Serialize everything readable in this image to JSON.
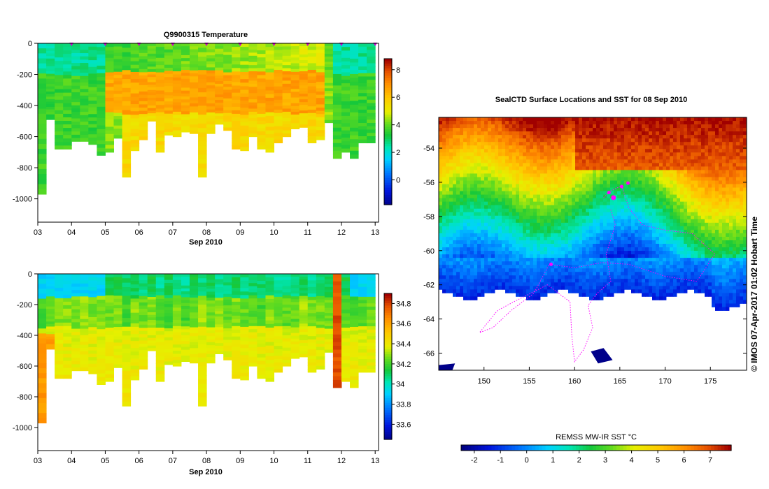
{
  "panels": {
    "temperature": {
      "title": "Q9900315  Temperature",
      "xlabel": "Sep 2010",
      "xticks": [
        "03",
        "04",
        "05",
        "06",
        "07",
        "08",
        "09",
        "10",
        "11",
        "12",
        "13"
      ],
      "yticks": [
        "0",
        "-200",
        "-400",
        "-600",
        "-800",
        "-1000"
      ],
      "ylim": [
        -1150,
        0
      ],
      "xlim": [
        3,
        13.1
      ],
      "colorbar_ticks": [
        "8",
        "6",
        "4",
        "2",
        "0"
      ],
      "colorbar_values": [
        8,
        6,
        4,
        2,
        0
      ],
      "colorbar_range": [
        -1.8,
        8.8
      ]
    },
    "salinity": {
      "xlabel": "Sep 2010",
      "xticks": [
        "03",
        "04",
        "05",
        "06",
        "07",
        "08",
        "09",
        "10",
        "11",
        "12",
        "13"
      ],
      "yticks": [
        "0",
        "-200",
        "-400",
        "-600",
        "-800",
        "-1000"
      ],
      "ylim": [
        -1150,
        0
      ],
      "xlim": [
        3,
        13.1
      ],
      "colorbar_ticks": [
        "34.8",
        "34.6",
        "34.4",
        "34.2",
        "34",
        "33.8",
        "33.6"
      ],
      "colorbar_values": [
        34.8,
        34.6,
        34.4,
        34.2,
        34.0,
        33.8,
        33.6
      ],
      "colorbar_range": [
        33.45,
        34.9
      ]
    },
    "map": {
      "title": "SealCTD Surface Locations and SST for 08 Sep 2010",
      "xticks": [
        "150",
        "155",
        "160",
        "165",
        "170",
        "175"
      ],
      "xtick_values": [
        150,
        155,
        160,
        165,
        170,
        175
      ],
      "yticks": [
        "-54",
        "-56",
        "-58",
        "-60",
        "-62",
        "-64",
        "-66"
      ],
      "ytick_values": [
        -54,
        -56,
        -58,
        -60,
        -62,
        -64,
        -66
      ],
      "lon_range": [
        145,
        179
      ],
      "lat_range": [
        -67,
        -52.2
      ],
      "colorbar_label": "REMSS MW-IR SST °C",
      "colorbar_ticks": [
        "-2",
        "-1",
        "0",
        "1",
        "2",
        "3",
        "4",
        "5",
        "6",
        "7"
      ],
      "colorbar_values": [
        -2,
        -1,
        0,
        1,
        2,
        3,
        4,
        5,
        6,
        7
      ],
      "colorbar_range": [
        -2.5,
        7.8
      ]
    },
    "credit": "©  IMOS 07-Apr-2017 01:02 Hobart Time"
  },
  "chart_data": [
    {
      "type": "heatmap",
      "title": "Q9900315  Temperature",
      "xlabel": "Sep 2010",
      "ylabel": "",
      "profile_days": [
        3.1,
        3.35,
        3.6,
        3.85,
        4.1,
        4.35,
        4.6,
        4.85,
        5.1,
        5.35,
        5.6,
        5.85,
        6.1,
        6.35,
        6.6,
        6.85,
        7.1,
        7.35,
        7.6,
        7.85,
        8.1,
        8.35,
        8.6,
        8.85,
        9.1,
        9.35,
        9.6,
        9.85,
        10.1,
        10.35,
        10.6,
        10.85,
        11.1,
        11.35,
        11.6,
        11.85,
        12.1,
        12.35,
        12.6,
        12.85
      ],
      "max_depth_m": [
        970,
        490,
        680,
        680,
        630,
        630,
        650,
        720,
        700,
        610,
        860,
        690,
        620,
        500,
        700,
        590,
        600,
        570,
        580,
        860,
        580,
        520,
        560,
        680,
        690,
        600,
        680,
        700,
        640,
        600,
        550,
        540,
        640,
        620,
        510,
        740,
        700,
        740,
        640,
        640
      ],
      "ylim": [
        -1150,
        0
      ],
      "colorbar_range": [
        -1.8,
        8.8
      ],
      "markers_days": [
        4,
        5,
        6,
        7,
        8,
        9,
        10,
        11,
        12,
        13
      ]
    },
    {
      "type": "heatmap",
      "title": "",
      "xlabel": "Sep 2010",
      "ylabel": "",
      "profile_days": [
        3.1,
        3.35,
        3.6,
        3.85,
        4.1,
        4.35,
        4.6,
        4.85,
        5.1,
        5.35,
        5.6,
        5.85,
        6.1,
        6.35,
        6.6,
        6.85,
        7.1,
        7.35,
        7.6,
        7.85,
        8.1,
        8.35,
        8.6,
        8.85,
        9.1,
        9.35,
        9.6,
        9.85,
        10.1,
        10.35,
        10.6,
        10.85,
        11.1,
        11.35,
        11.6,
        11.85,
        12.1,
        12.35,
        12.6,
        12.85
      ],
      "max_depth_m": [
        970,
        490,
        680,
        680,
        630,
        630,
        650,
        720,
        700,
        610,
        860,
        690,
        620,
        500,
        700,
        590,
        600,
        570,
        580,
        860,
        580,
        520,
        560,
        680,
        690,
        600,
        680,
        700,
        640,
        600,
        550,
        540,
        640,
        620,
        510,
        740,
        700,
        740,
        640,
        640
      ],
      "ylim": [
        -1150,
        0
      ],
      "colorbar_range": [
        33.45,
        34.9
      ]
    },
    {
      "type": "heatmap",
      "title": "SealCTD Surface Locations and SST for 08 Sep 2010",
      "xlabel": "",
      "ylabel": "",
      "lon_range": [
        145,
        179
      ],
      "lat_range": [
        -67,
        -52.2
      ],
      "colorbar_range": [
        -2.5,
        7.8
      ],
      "track": [
        [
          163.2,
          -56.9
        ],
        [
          164.0,
          -56.5
        ],
        [
          165.2,
          -56.2
        ],
        [
          166.0,
          -57.5
        ],
        [
          167.5,
          -58.5
        ],
        [
          170.0,
          -58.8
        ],
        [
          173.0,
          -59.0
        ],
        [
          175.5,
          -60.2
        ],
        [
          173.5,
          -61.8
        ],
        [
          170.0,
          -61.5
        ],
        [
          166.0,
          -60.8
        ],
        [
          163.0,
          -60.7
        ],
        [
          160.0,
          -61.0
        ],
        [
          157.2,
          -60.8
        ],
        [
          155.5,
          -62.5
        ],
        [
          153.0,
          -63.5
        ],
        [
          151.0,
          -64.5
        ],
        [
          149.5,
          -64.8
        ],
        [
          151.5,
          -63.5
        ],
        [
          154.0,
          -62.8
        ],
        [
          157.0,
          -62.0
        ],
        [
          159.5,
          -63.0
        ],
        [
          159.7,
          -65.0
        ],
        [
          160.0,
          -66.5
        ],
        [
          161.0,
          -65.8
        ],
        [
          162.0,
          -64.5
        ],
        [
          161.5,
          -63.2
        ],
        [
          162.5,
          -62.5
        ],
        [
          164.0,
          -61.8
        ],
        [
          163.5,
          -60.2
        ],
        [
          164.5,
          -58.5
        ],
        [
          164.0,
          -57.6
        ]
      ],
      "locations": [
        [
          164.3,
          -56.9
        ],
        [
          163.8,
          -56.6
        ],
        [
          165.2,
          -56.25
        ],
        [
          165.9,
          -56.05
        ],
        [
          157.4,
          -60.8
        ]
      ]
    }
  ]
}
